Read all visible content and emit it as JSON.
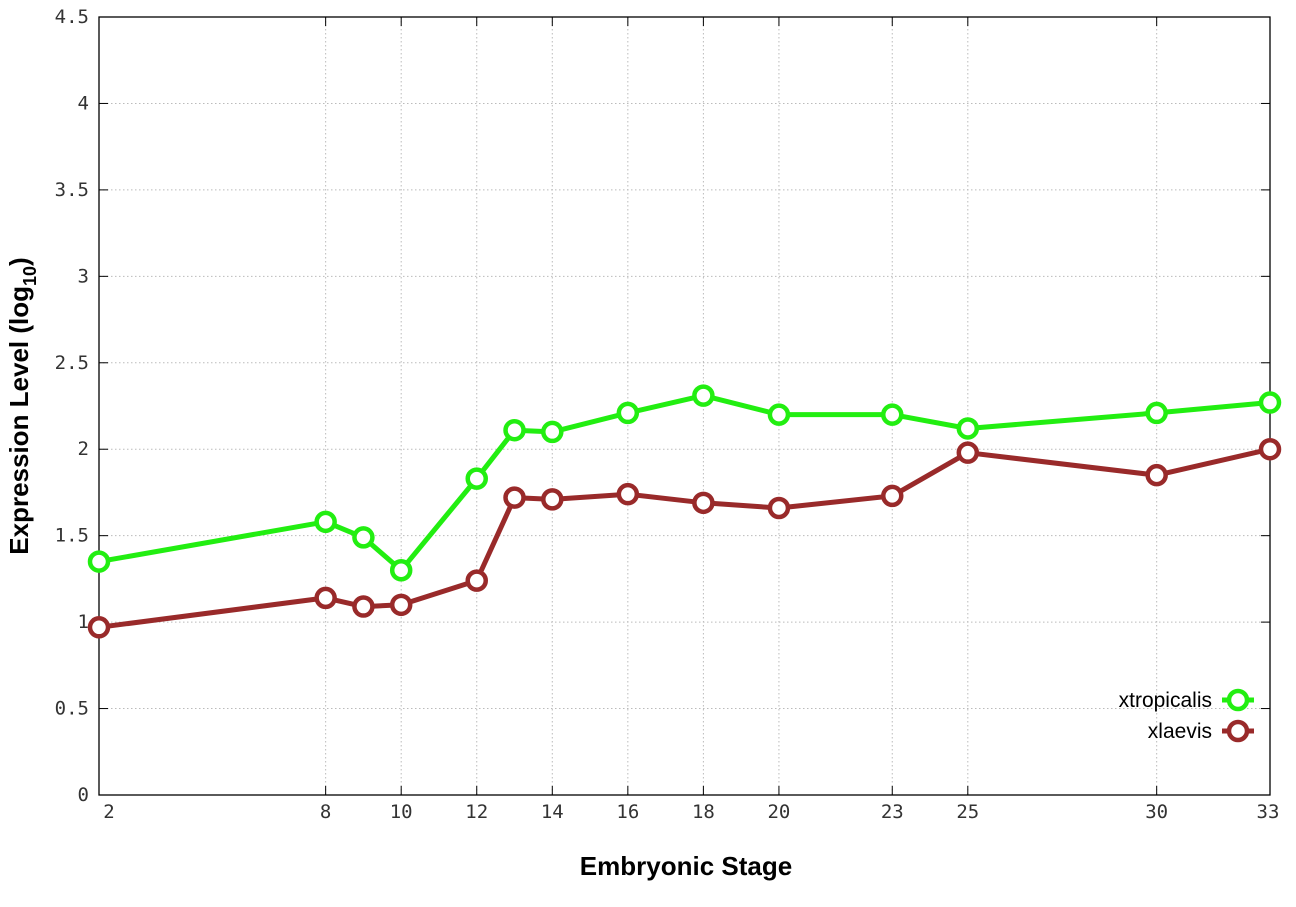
{
  "chart_data": {
    "type": "line",
    "title": "",
    "xlabel": "Embryonic Stage",
    "ylabel": {
      "main": "Expression Level (log",
      "sub": "10",
      "close": ")"
    },
    "x": [
      2,
      8,
      9,
      10,
      12,
      13,
      14,
      16,
      18,
      20,
      23,
      25,
      30,
      33
    ],
    "xticks": [
      2,
      8,
      10,
      12,
      14,
      16,
      18,
      20,
      23,
      25,
      30,
      33
    ],
    "yticks": [
      0,
      0.5,
      1,
      1.5,
      2,
      2.5,
      3,
      3.5,
      4,
      4.5
    ],
    "ytick_labels": [
      "0",
      "0.5",
      "1",
      "1.5",
      "2",
      "2.5",
      "3",
      "3.5",
      "4",
      "4.5"
    ],
    "xlim": [
      2,
      33
    ],
    "ylim": [
      0,
      4.5
    ],
    "grid": true,
    "legend_position": "bottom-right",
    "series": [
      {
        "name": "xtropicalis",
        "color": "#22ee11",
        "values": [
          1.35,
          1.58,
          1.49,
          1.3,
          1.83,
          2.11,
          2.1,
          2.21,
          2.31,
          2.2,
          2.2,
          2.12,
          2.21,
          2.27
        ]
      },
      {
        "name": "xlaevis",
        "color": "#992a2a",
        "values": [
          0.97,
          1.14,
          1.09,
          1.1,
          1.24,
          1.72,
          1.71,
          1.74,
          1.69,
          1.66,
          1.73,
          1.98,
          1.85,
          2.0
        ]
      }
    ]
  }
}
